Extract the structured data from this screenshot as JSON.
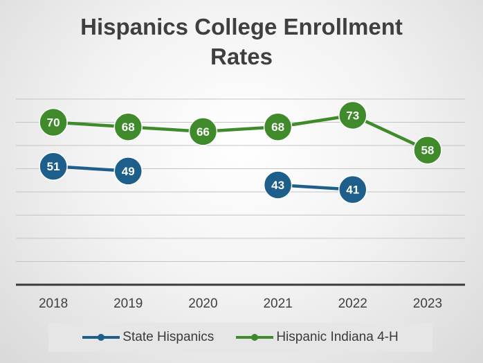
{
  "chart_data": {
    "type": "line",
    "title_lines": [
      "Hispanics College Enrollment",
      "Rates"
    ],
    "categories": [
      "2018",
      "2019",
      "2020",
      "2021",
      "2022",
      "2023"
    ],
    "series": [
      {
        "name": "State Hispanics",
        "color": "#1d5f8a",
        "values": [
          51,
          49,
          null,
          43,
          41,
          null
        ]
      },
      {
        "name": "Hispanic Indiana 4-H",
        "color": "#3f8a2a",
        "values": [
          70,
          68,
          66,
          68,
          73,
          58
        ]
      }
    ],
    "ylim": [
      0,
      80
    ],
    "y_gridline_step": 10,
    "y_tick_labels_shown": false,
    "data_labels": true,
    "legend_position": "bottom"
  }
}
